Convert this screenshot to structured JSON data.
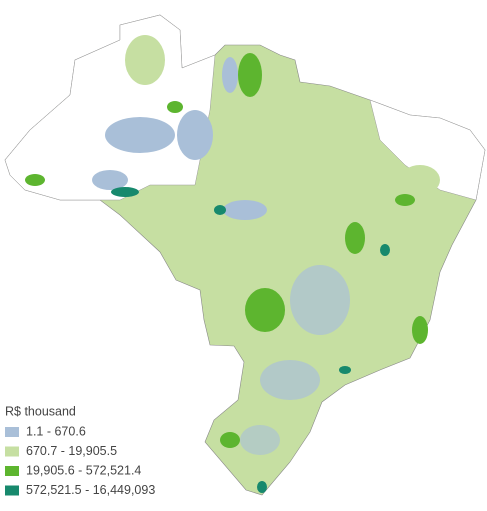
{
  "legend": {
    "title": "R$ thousand",
    "items": [
      {
        "label": "1.1 - 670.6",
        "color": "#a9bfd8"
      },
      {
        "label": "670.7 - 19,905.5",
        "color": "#c6dfa2"
      },
      {
        "label": "19,905.6 - 572,521.4",
        "color": "#5db52f"
      },
      {
        "label": "572,521.5 - 16,449,093",
        "color": "#17896d"
      }
    ]
  }
}
